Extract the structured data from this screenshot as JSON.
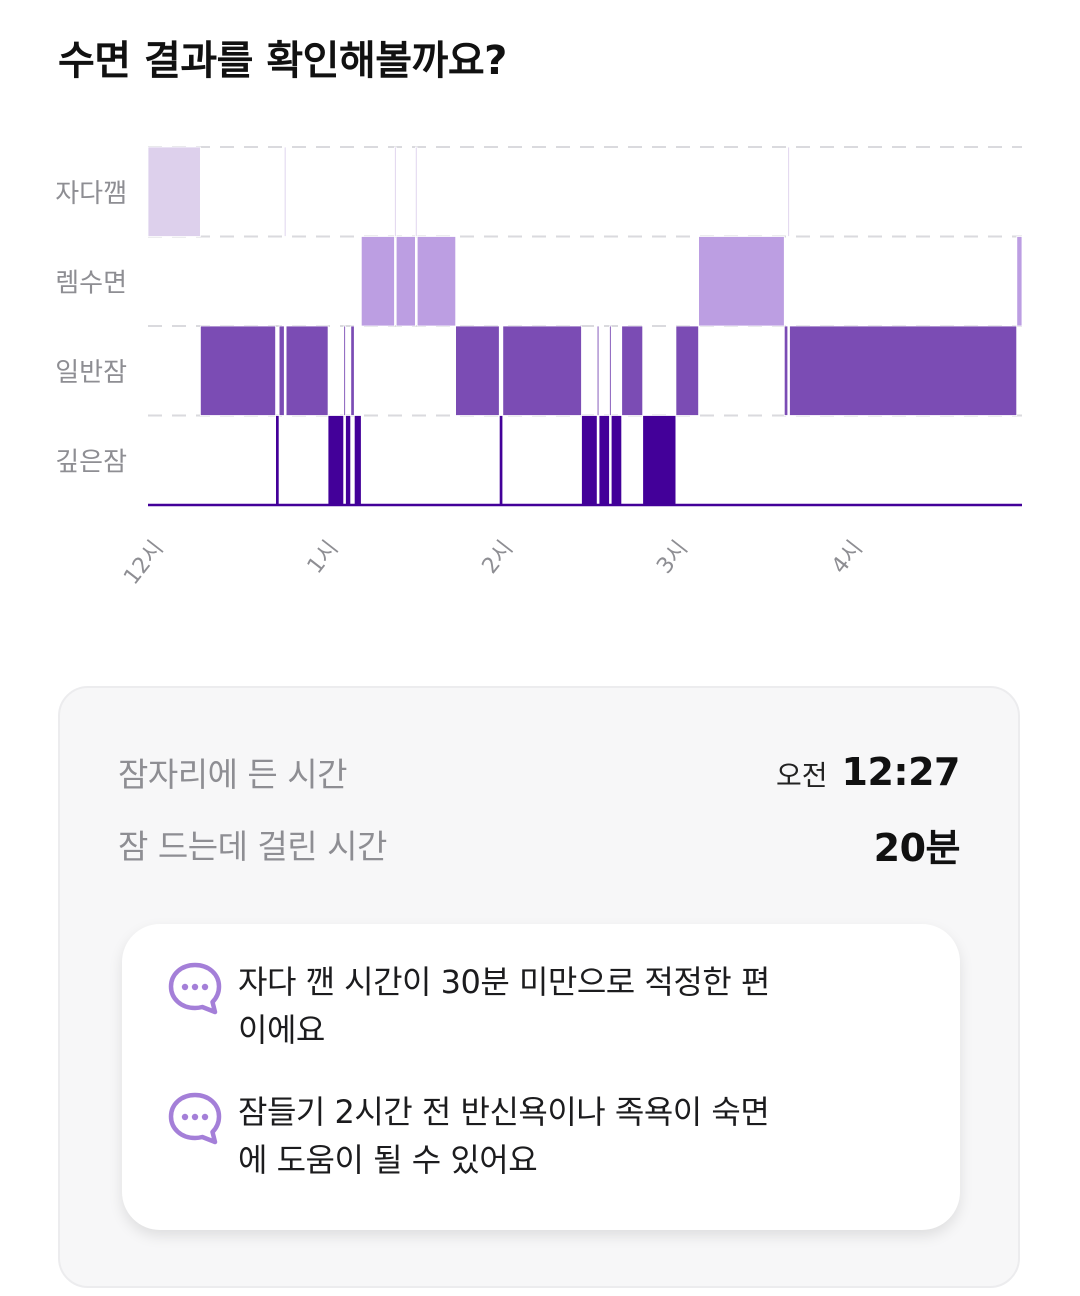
{
  "page": {
    "title": "수면 결과를 확인해볼까요?"
  },
  "chart_data": {
    "type": "timeline",
    "stages": [
      "자다깸",
      "렘수면",
      "일반잠",
      "깊은잠"
    ],
    "x_ticks": [
      "12시",
      "1시",
      "2시",
      "3시",
      "4시"
    ],
    "x_unit": "hours after midnight",
    "x_range": [
      0,
      5
    ],
    "grid": true,
    "colors": {
      "자다깸": "#ddd0ec",
      "렘수면": "#bc9ee2",
      "일반잠": "#7b4cb4",
      "깊은잠": "#430099"
    },
    "segments": [
      {
        "stage": "자다깸",
        "start": 0.0,
        "end": 0.3
      },
      {
        "stage": "일반잠",
        "start": 0.3,
        "end": 0.73
      },
      {
        "stage": "깊은잠",
        "start": 0.73,
        "end": 0.75
      },
      {
        "stage": "일반잠",
        "start": 0.75,
        "end": 0.78
      },
      {
        "stage": "자다깸",
        "start": 0.78,
        "end": 0.79
      },
      {
        "stage": "일반잠",
        "start": 0.79,
        "end": 1.03
      },
      {
        "stage": "깊은잠",
        "start": 1.03,
        "end": 1.12
      },
      {
        "stage": "일반잠",
        "start": 1.12,
        "end": 1.13
      },
      {
        "stage": "깊은잠",
        "start": 1.13,
        "end": 1.16
      },
      {
        "stage": "일반잠",
        "start": 1.16,
        "end": 1.18
      },
      {
        "stage": "깊은잠",
        "start": 1.18,
        "end": 1.22
      },
      {
        "stage": "렘수면",
        "start": 1.22,
        "end": 1.41
      },
      {
        "stage": "자다깸",
        "start": 1.41,
        "end": 1.42
      },
      {
        "stage": "렘수면",
        "start": 1.42,
        "end": 1.53
      },
      {
        "stage": "자다깸",
        "start": 1.53,
        "end": 1.54
      },
      {
        "stage": "렘수면",
        "start": 1.54,
        "end": 1.76
      },
      {
        "stage": "일반잠",
        "start": 1.76,
        "end": 2.01
      },
      {
        "stage": "깊은잠",
        "start": 2.01,
        "end": 2.03
      },
      {
        "stage": "일반잠",
        "start": 2.03,
        "end": 2.48
      },
      {
        "stage": "깊은잠",
        "start": 2.48,
        "end": 2.57
      },
      {
        "stage": "일반잠",
        "start": 2.57,
        "end": 2.58
      },
      {
        "stage": "깊은잠",
        "start": 2.58,
        "end": 2.64
      },
      {
        "stage": "일반잠",
        "start": 2.64,
        "end": 2.65
      },
      {
        "stage": "깊은잠",
        "start": 2.65,
        "end": 2.71
      },
      {
        "stage": "일반잠",
        "start": 2.71,
        "end": 2.83
      },
      {
        "stage": "깊은잠",
        "start": 2.83,
        "end": 3.02
      },
      {
        "stage": "일반잠",
        "start": 3.02,
        "end": 3.15
      },
      {
        "stage": "렘수면",
        "start": 3.15,
        "end": 3.64
      },
      {
        "stage": "일반잠",
        "start": 3.64,
        "end": 3.66
      },
      {
        "stage": "자다깸",
        "start": 3.66,
        "end": 3.67
      },
      {
        "stage": "일반잠",
        "start": 3.67,
        "end": 4.97
      },
      {
        "stage": "렘수면",
        "start": 4.97,
        "end": 5.0
      }
    ]
  },
  "summary": {
    "bedtime_label": "잠자리에 든 시간",
    "bedtime_period": "오전",
    "bedtime_value": "12:27",
    "latency_label": "잠 드는데 걸린 시간",
    "latency_value": "20분",
    "tips": [
      {
        "icon": "chat-bubble-icon",
        "text": "자다 깬 시간이 30분 미만으로 적정한 편이에요"
      },
      {
        "icon": "chat-bubble-icon",
        "text": "잠들기 2시간 전 반신욕이나 족욕이 숙면에 도움이 될 수 있어요"
      }
    ],
    "icon_color": "#a47fd8"
  }
}
